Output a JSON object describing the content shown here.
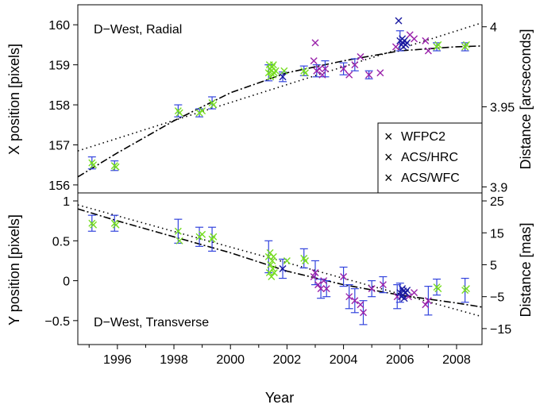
{
  "chart_data": {
    "type": "scatter",
    "xlabel": "Year",
    "x_ticks": [
      "1996",
      "1998",
      "2000",
      "2002",
      "2004",
      "2006",
      "2008"
    ],
    "xlim": [
      1994.6,
      2008.9
    ],
    "colors": {
      "WFPC2": "#77dd22",
      "ACS/HRC": "#9922aa",
      "ACS/WFC": "#1a1aa0",
      "errorbar": "#3344dd"
    },
    "legend": {
      "position": "bottom-right of top panel",
      "entries": [
        {
          "label": "WFPC2",
          "color": "#77dd22"
        },
        {
          "label": "ACS/HRC",
          "color": "#9922aa"
        },
        {
          "label": "ACS/WFC",
          "color": "#1a1aa0"
        }
      ]
    },
    "panels": [
      {
        "id": "top",
        "annotation": "D−West, Radial",
        "ylabel": "X position [pixels]",
        "y2label": "Distance [arcseconds]",
        "ylim": [
          155.8,
          160.5
        ],
        "y_ticks": [
          "156",
          "157",
          "158",
          "159",
          "160"
        ],
        "y2_ticks": [
          "3.9",
          "3.95",
          "4"
        ],
        "y2_tick_positions": [
          155.95,
          157.95,
          159.95
        ],
        "series": [
          {
            "name": "WFPC2",
            "points": [
              [
                1995.1,
                156.55,
                0.15
              ],
              [
                1995.15,
                156.5,
                0
              ],
              [
                1995.9,
                156.48,
                0.12
              ],
              [
                1995.95,
                156.45,
                0
              ],
              [
                1998.15,
                157.85,
                0.15
              ],
              [
                1998.2,
                157.8,
                0
              ],
              [
                1998.9,
                157.8,
                0.1
              ],
              [
                1999.0,
                157.85,
                0
              ],
              [
                1999.35,
                158.05,
                0.15
              ],
              [
                1999.4,
                158.0,
                0
              ],
              [
                2001.35,
                158.8,
                0.2
              ],
              [
                2001.38,
                159.0,
                0
              ],
              [
                2001.4,
                158.9,
                0
              ],
              [
                2001.42,
                158.7,
                0
              ],
              [
                2001.45,
                158.85,
                0
              ],
              [
                2001.48,
                158.95,
                0
              ],
              [
                2001.5,
                158.75,
                0
              ],
              [
                2001.52,
                159.0,
                0
              ],
              [
                2001.55,
                158.8,
                0
              ],
              [
                2001.6,
                158.85,
                0
              ],
              [
                2001.9,
                158.85,
                0
              ],
              [
                2002.6,
                158.85,
                0.12
              ],
              [
                2002.65,
                158.8,
                0
              ],
              [
                2007.3,
                159.45,
                0.1
              ],
              [
                2007.35,
                159.5,
                0
              ],
              [
                2008.3,
                159.45,
                0.1
              ],
              [
                2008.35,
                159.5,
                0
              ]
            ]
          },
          {
            "name": "ACS/HRC",
            "points": [
              [
                2002.95,
                159.1,
                0
              ],
              [
                2003.0,
                159.55,
                0
              ],
              [
                2003.05,
                158.85,
                0.15
              ],
              [
                2003.15,
                158.9,
                0
              ],
              [
                2003.25,
                158.75,
                0
              ],
              [
                2003.35,
                158.9,
                0.2
              ],
              [
                2004.0,
                158.9,
                0.15
              ],
              [
                2004.2,
                158.75,
                0
              ],
              [
                2004.4,
                159.0,
                0.15
              ],
              [
                2004.6,
                159.2,
                0
              ],
              [
                2004.9,
                158.75,
                0.1
              ],
              [
                2005.3,
                158.8,
                0
              ],
              [
                2005.85,
                159.45,
                0
              ],
              [
                2006.35,
                159.75,
                0
              ],
              [
                2006.5,
                159.65,
                0
              ],
              [
                2006.9,
                159.6,
                0
              ],
              [
                2007.0,
                159.35,
                0
              ]
            ]
          },
          {
            "name": "ACS/WFC",
            "points": [
              [
                2001.85,
                158.7,
                0.12
              ],
              [
                2005.95,
                160.1,
                0
              ],
              [
                2006.0,
                159.6,
                0.25
              ],
              [
                2006.05,
                159.5,
                0
              ],
              [
                2006.08,
                159.65,
                0
              ],
              [
                2006.1,
                159.55,
                0
              ],
              [
                2006.12,
                159.45,
                0
              ],
              [
                2006.15,
                159.6,
                0
              ],
              [
                2006.2,
                159.5,
                0
              ],
              [
                2006.25,
                159.55,
                0
              ]
            ]
          }
        ],
        "fits": [
          {
            "style": "dotted",
            "points": [
              [
                1994.6,
                156.85
              ],
              [
                2008.9,
                160.05
              ]
            ]
          },
          {
            "style": "dashdot",
            "points": [
              [
                1994.6,
                156.2
              ],
              [
                1996,
                156.8
              ],
              [
                1998,
                157.6
              ],
              [
                2000,
                158.3
              ],
              [
                2002,
                158.8
              ],
              [
                2004,
                159.1
              ],
              [
                2006,
                159.35
              ],
              [
                2008,
                159.45
              ],
              [
                2008.9,
                159.47
              ]
            ]
          }
        ]
      },
      {
        "id": "bottom",
        "annotation": "D−West, Transverse",
        "ylabel": "Y position [pixels]",
        "y2label": "Distance [mas]",
        "ylim": [
          -0.8,
          1.1
        ],
        "y_ticks": [
          "−0.5",
          "0",
          "0.5",
          "1"
        ],
        "y2_ticks": [
          "−15",
          "−5",
          "5",
          "15",
          "25"
        ],
        "y2_tick_positions": [
          -0.6,
          -0.2,
          0.2,
          0.6,
          1.0
        ],
        "series": [
          {
            "name": "WFPC2",
            "points": [
              [
                1995.1,
                0.72,
                0.1
              ],
              [
                1995.15,
                0.7,
                0
              ],
              [
                1995.9,
                0.72,
                0.1
              ],
              [
                1995.95,
                0.7,
                0
              ],
              [
                1998.15,
                0.62,
                0.15
              ],
              [
                1998.2,
                0.5,
                0
              ],
              [
                1998.9,
                0.55,
                0.12
              ],
              [
                1999.0,
                0.58,
                0
              ],
              [
                1999.35,
                0.52,
                0.15
              ],
              [
                1999.4,
                0.55,
                0
              ],
              [
                2001.35,
                0.3,
                0.2
              ],
              [
                2001.38,
                0.1,
                0
              ],
              [
                2001.4,
                0.35,
                0
              ],
              [
                2001.42,
                0.2,
                0
              ],
              [
                2001.45,
                0.05,
                0
              ],
              [
                2001.48,
                0.25,
                0
              ],
              [
                2001.5,
                0.15,
                0
              ],
              [
                2001.52,
                0.3,
                0
              ],
              [
                2001.55,
                0.1,
                0
              ],
              [
                2002.0,
                0.25,
                0
              ],
              [
                2002.6,
                0.28,
                0.12
              ],
              [
                2002.65,
                0.25,
                0
              ],
              [
                2007.3,
                -0.08,
                0.1
              ],
              [
                2007.35,
                -0.1,
                0
              ],
              [
                2008.3,
                -0.12,
                0.15
              ],
              [
                2008.35,
                -0.1,
                0
              ]
            ]
          },
          {
            "name": "ACS/HRC",
            "points": [
              [
                2002.95,
                0.05,
                0
              ],
              [
                2003.0,
                0.1,
                0.15
              ],
              [
                2003.1,
                -0.05,
                0
              ],
              [
                2003.2,
                -0.1,
                0.12
              ],
              [
                2003.3,
                0.0,
                0
              ],
              [
                2003.4,
                -0.1,
                0.1
              ],
              [
                2004.0,
                0.05,
                0.12
              ],
              [
                2004.2,
                -0.2,
                0.15
              ],
              [
                2004.4,
                -0.25,
                0.15
              ],
              [
                2004.6,
                -0.3,
                0
              ],
              [
                2004.7,
                -0.4,
                0.15
              ],
              [
                2005.0,
                -0.1,
                0.1
              ],
              [
                2005.4,
                -0.05,
                0.1
              ],
              [
                2005.9,
                -0.2,
                0.15
              ],
              [
                2006.3,
                -0.2,
                0
              ],
              [
                2006.5,
                -0.15,
                0
              ],
              [
                2006.9,
                -0.3,
                0
              ],
              [
                2007.0,
                -0.25,
                0.18
              ]
            ]
          },
          {
            "name": "ACS/WFC",
            "points": [
              [
                2001.85,
                0.15,
                0.12
              ],
              [
                2006.0,
                -0.15,
                0.12
              ],
              [
                2006.05,
                -0.2,
                0
              ],
              [
                2006.08,
                -0.1,
                0
              ],
              [
                2006.1,
                -0.18,
                0
              ],
              [
                2006.12,
                -0.13,
                0
              ],
              [
                2006.15,
                -0.22,
                0
              ],
              [
                2006.2,
                -0.15,
                0
              ],
              [
                2006.25,
                -0.12,
                0
              ]
            ]
          }
        ],
        "fits": [
          {
            "style": "dotted",
            "points": [
              [
                1994.6,
                0.95
              ],
              [
                2008.9,
                -0.45
              ]
            ]
          },
          {
            "style": "dashdot",
            "points": [
              [
                1994.6,
                0.9
              ],
              [
                1996,
                0.75
              ],
              [
                1998,
                0.55
              ],
              [
                2000,
                0.35
              ],
              [
                2002,
                0.12
              ],
              [
                2004,
                -0.05
              ],
              [
                2006,
                -0.18
              ],
              [
                2008,
                -0.28
              ],
              [
                2008.9,
                -0.33
              ]
            ]
          }
        ]
      }
    ]
  }
}
